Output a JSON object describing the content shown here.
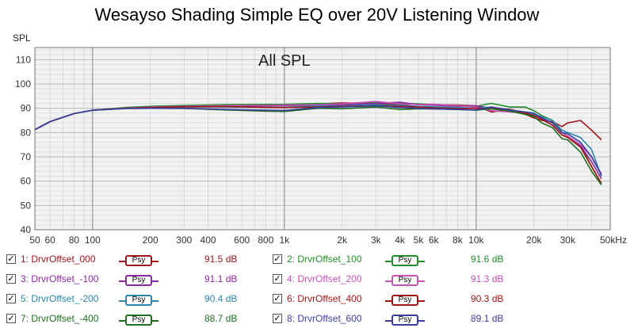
{
  "chart_data": {
    "type": "line",
    "title": "Wesayso Shading Simple EQ over 20V Listening Window",
    "annotation": "All SPL",
    "ylabel": "SPL",
    "xunit": "50kHz",
    "xscale": "log",
    "xlim": [
      50,
      50000
    ],
    "ylim": [
      40,
      115
    ],
    "grid": true,
    "x_ticks": [
      {
        "value": 50,
        "label": "50"
      },
      {
        "value": 60,
        "label": "60"
      },
      {
        "value": 80,
        "label": "80"
      },
      {
        "value": 100,
        "label": "100"
      },
      {
        "value": 200,
        "label": "200"
      },
      {
        "value": 300,
        "label": "300"
      },
      {
        "value": 400,
        "label": "400"
      },
      {
        "value": 600,
        "label": "600"
      },
      {
        "value": 800,
        "label": "800"
      },
      {
        "value": 1000,
        "label": "1k"
      },
      {
        "value": 2000,
        "label": "2k"
      },
      {
        "value": 3000,
        "label": "3k"
      },
      {
        "value": 4000,
        "label": "4k"
      },
      {
        "value": 5000,
        "label": "5k"
      },
      {
        "value": 6000,
        "label": "6k"
      },
      {
        "value": 8000,
        "label": "8k"
      },
      {
        "value": 10000,
        "label": "10k"
      },
      {
        "value": 20000,
        "label": "20k"
      },
      {
        "value": 30000,
        "label": "30k"
      }
    ],
    "y_ticks": [
      40,
      50,
      60,
      70,
      80,
      90,
      100,
      110
    ],
    "x": [
      50,
      60,
      80,
      100,
      150,
      200,
      300,
      500,
      800,
      1000,
      1500,
      2000,
      3000,
      4000,
      5000,
      6000,
      8000,
      10000,
      12000,
      15000,
      18000,
      20000,
      22000,
      25000,
      28000,
      30000,
      35000,
      40000,
      45000
    ],
    "series": [
      {
        "name": "1: DrvrOffset_000",
        "value_text": "91.5 dB",
        "color": "#a0141e",
        "values": [
          81.2,
          84.5,
          87.8,
          89.2,
          90.3,
          90.6,
          91.0,
          91.3,
          91.4,
          91.5,
          91.8,
          92.2,
          92.0,
          91.6,
          91.7,
          91.5,
          91.3,
          91.0,
          88.5,
          89.5,
          87.5,
          86.0,
          85.0,
          84.5,
          82.5,
          84.0,
          85.0,
          81.0,
          77.0
        ]
      },
      {
        "name": "2: DrvrOffset_100",
        "value_text": "91.6 dB",
        "color": "#1e8c28",
        "values": [
          81.2,
          84.5,
          87.8,
          89.2,
          90.3,
          90.8,
          91.2,
          91.5,
          91.6,
          91.6,
          92.0,
          91.8,
          92.5,
          92.0,
          91.8,
          91.5,
          91.0,
          90.8,
          92.0,
          90.5,
          90.5,
          89.0,
          87.0,
          85.0,
          80.0,
          78.5,
          75.0,
          66.0,
          59.0
        ]
      },
      {
        "name": "3: DrvrOffset_-100",
        "value_text": "91.1 dB",
        "color": "#8c28a0",
        "values": [
          81.2,
          84.5,
          87.8,
          89.2,
          90.0,
          90.3,
          90.6,
          90.9,
          91.0,
          91.1,
          91.3,
          91.5,
          92.0,
          92.5,
          91.5,
          91.3,
          90.8,
          91.0,
          90.0,
          89.5,
          88.0,
          87.0,
          85.5,
          83.0,
          79.0,
          78.0,
          74.5,
          68.0,
          61.0
        ]
      },
      {
        "name": "4: DrvrOffset_200",
        "value_text": "91.3 dB",
        "color": "#c850b4",
        "values": [
          81.2,
          84.5,
          87.8,
          89.2,
          90.1,
          90.5,
          90.8,
          91.1,
          91.2,
          91.3,
          91.5,
          91.8,
          92.8,
          91.8,
          91.5,
          91.7,
          91.0,
          90.5,
          89.0,
          88.5,
          88.0,
          87.5,
          86.0,
          84.0,
          80.0,
          78.5,
          75.0,
          70.0,
          63.0
        ]
      },
      {
        "name": "5: DrvrOffset_-200",
        "value_text": "90.4 dB",
        "color": "#2887aa",
        "values": [
          81.2,
          84.5,
          87.8,
          89.2,
          90.0,
          90.3,
          90.5,
          90.5,
          90.4,
          90.4,
          91.0,
          91.0,
          91.5,
          91.3,
          90.8,
          90.6,
          90.3,
          90.0,
          90.5,
          89.0,
          88.0,
          87.5,
          86.5,
          85.0,
          81.0,
          80.0,
          78.0,
          73.0,
          62.0
        ]
      },
      {
        "name": "6: DrvrOffset_400",
        "value_text": "90.3 dB",
        "color": "#a01414",
        "values": [
          81.2,
          84.5,
          87.8,
          89.2,
          90.0,
          90.3,
          90.6,
          90.7,
          90.4,
          90.3,
          90.5,
          90.8,
          91.0,
          90.8,
          90.5,
          90.2,
          89.9,
          90.0,
          89.8,
          89.5,
          88.0,
          87.0,
          85.5,
          83.0,
          79.0,
          78.0,
          74.0,
          66.0,
          59.0
        ]
      },
      {
        "name": "7: DrvrOffset_-400",
        "value_text": "88.7 dB",
        "color": "#1e6e1e",
        "values": [
          81.2,
          84.5,
          87.8,
          89.2,
          89.9,
          90.0,
          89.9,
          89.3,
          88.8,
          88.7,
          90.0,
          89.8,
          90.5,
          89.5,
          89.8,
          89.7,
          89.5,
          89.2,
          89.8,
          88.8,
          87.5,
          86.5,
          84.0,
          82.0,
          77.5,
          77.0,
          72.0,
          64.0,
          58.5
        ]
      },
      {
        "name": "8: DrvrOffset_600",
        "value_text": "89.1 dB",
        "color": "#3c3ca0",
        "values": [
          81.2,
          84.5,
          87.8,
          89.2,
          89.9,
          90.0,
          90.0,
          89.5,
          89.2,
          89.1,
          90.3,
          90.5,
          91.0,
          90.3,
          90.0,
          89.8,
          89.5,
          89.3,
          90.5,
          89.3,
          88.5,
          88.0,
          86.0,
          84.0,
          80.0,
          79.5,
          76.0,
          70.0,
          62.5
        ]
      }
    ]
  },
  "legend": {
    "psy_label": "Psy",
    "check_glyph": "✓"
  }
}
